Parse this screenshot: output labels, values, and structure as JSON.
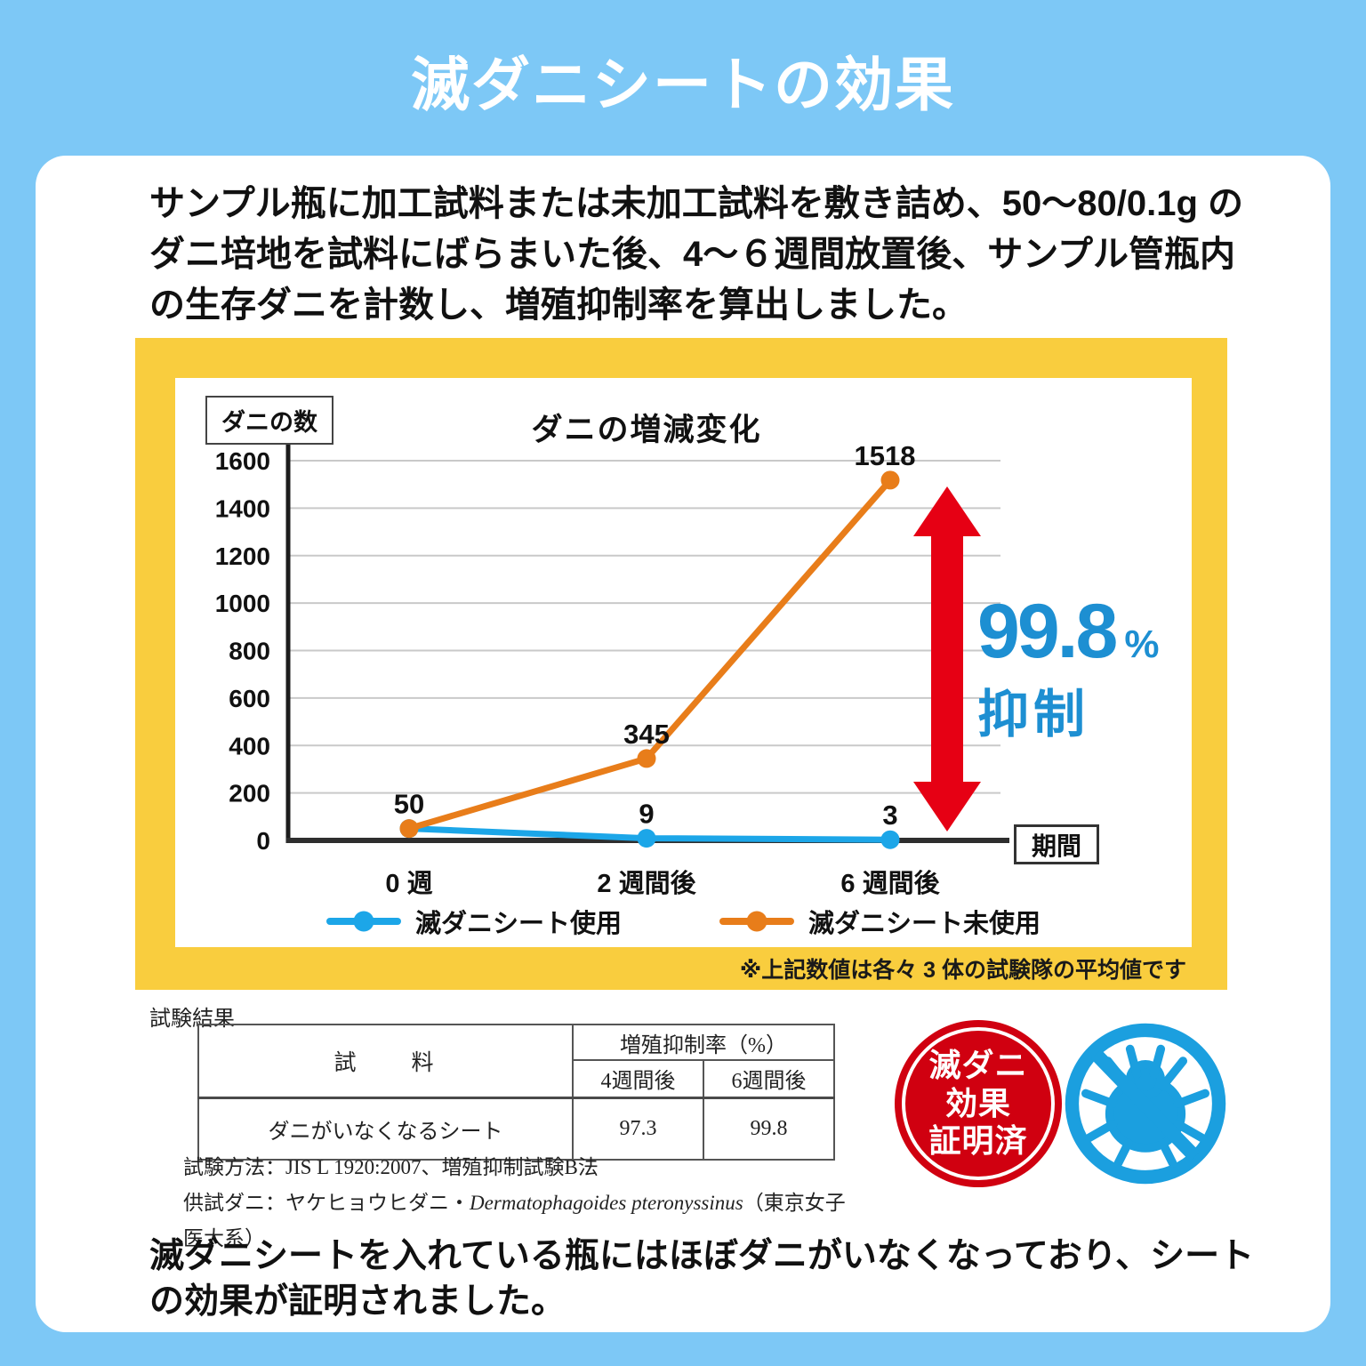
{
  "colors": {
    "background": "#7dc8f6",
    "card": "#ffffff",
    "title_white": "#ffffff",
    "frame_yellow": "#f9cd3e",
    "grid_gray": "#c9c9c9",
    "axis_dark": "#2e2e2e",
    "line_used": "#1ca6e8",
    "line_unused": "#e87d1a",
    "arrow_red": "#e60014",
    "annotation_blue": "#1d8fd2",
    "badge_red": "#d00010",
    "icon_blue": "#1b9fdf"
  },
  "header": {
    "title": "滅ダニシートの効果"
  },
  "intro": {
    "text": "サンプル瓶に加工試料または未加工試料を敷き詰め、50〜80/0.1g の\nダニ培地を試料にばらまいた後、4〜６週間放置後、サンプル管瓶内\nの生存ダニを計数し、増殖抑制率を算出しました。"
  },
  "chart_data": {
    "type": "line",
    "title": "ダニの増減変化",
    "y_axis_unit": "ダニの数",
    "x_axis_unit": "期間",
    "categories": [
      "0 週",
      "2 週間後",
      "6 週間後"
    ],
    "series": [
      {
        "name": "滅ダニシート使用",
        "color": "#1ca6e8",
        "values": [
          50,
          9,
          3
        ]
      },
      {
        "name": "滅ダニシート未使用",
        "color": "#e87d1a",
        "values": [
          50,
          345,
          1518
        ]
      }
    ],
    "ylim": [
      0,
      1600
    ],
    "y_ticks": [
      0,
      200,
      400,
      600,
      800,
      1000,
      1200,
      1400,
      1600
    ],
    "grid": true,
    "legend_position": "bottom",
    "annotation": {
      "value": "99.8",
      "unit": "%",
      "label": "抑制"
    },
    "note": "※上記数値は各々 3 体の試験隊の平均値です"
  },
  "results": {
    "heading": "試験結果",
    "table": {
      "sample_header": "試　　料",
      "group_header": "増殖抑制率（%）",
      "sub_headers": [
        "4週間後",
        "6週間後"
      ],
      "rows": [
        {
          "sample": "ダニがいなくなるシート",
          "week4": "97.3",
          "week6": "99.8"
        }
      ]
    },
    "method_note": "試験方法：JIS L 1920:2007、増殖抑制試験B法",
    "mite_note_prefix": "供試ダニ：ヤケヒョウヒダニ・",
    "mite_note_latin": "Dermatophagoides pteronyssinus",
    "mite_note_suffix": "（東京女子医大系）",
    "badge_lines": [
      "滅ダニ",
      "効果",
      "証明済"
    ]
  },
  "conclusion": {
    "text": "滅ダニシートを入れている瓶にはほぼダニがいなくなっており、シート\nの効果が証明されました。"
  }
}
